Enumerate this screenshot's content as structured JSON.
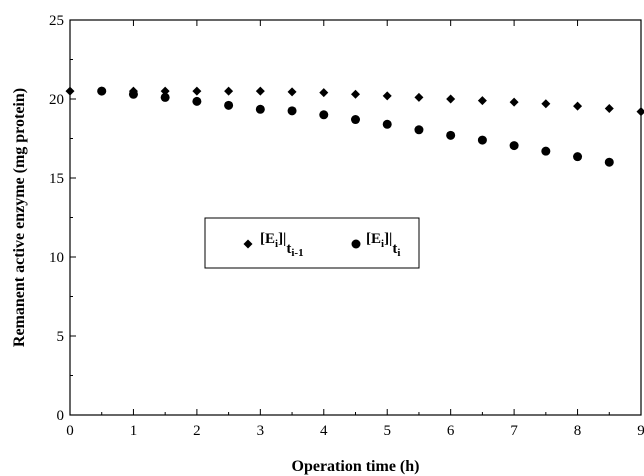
{
  "chart_data": {
    "type": "scatter",
    "title": "",
    "xlabel": "Operation time (h)",
    "ylabel": "Remanent active enzyme (mg protein)",
    "xlim": [
      0,
      9
    ],
    "ylim": [
      0,
      25
    ],
    "xticks": [
      0,
      1,
      2,
      3,
      4,
      5,
      6,
      7,
      8,
      9
    ],
    "yticks": [
      0,
      5,
      10,
      15,
      20,
      25
    ],
    "grid": false,
    "legend_position": "center-left",
    "series": [
      {
        "name": "[Ei]|ti-1",
        "legend": {
          "main": "[E",
          "sub1": "i",
          "mid": "]|",
          "sub2": "t",
          "sub3": "i-1"
        },
        "marker": "diamond",
        "color": "#000000",
        "x": [
          0,
          0.5,
          1,
          1.5,
          2,
          2.5,
          3,
          3.5,
          4,
          4.5,
          5,
          5.5,
          6,
          6.5,
          7,
          7.5,
          8,
          8.5,
          9
        ],
        "y": [
          20.5,
          20.5,
          20.5,
          20.5,
          20.5,
          20.5,
          20.5,
          20.45,
          20.4,
          20.3,
          20.2,
          20.1,
          20.0,
          19.9,
          19.8,
          19.7,
          19.55,
          19.4,
          19.2
        ]
      },
      {
        "name": "[Ei]|ti",
        "legend": {
          "main": "[E",
          "sub1": "i",
          "mid": "]|",
          "sub2": "t",
          "sub3": "i"
        },
        "marker": "circle",
        "color": "#000000",
        "x": [
          0.5,
          1,
          1.5,
          2,
          2.5,
          3,
          3.5,
          4,
          4.5,
          5,
          5.5,
          6,
          6.5,
          7,
          7.5,
          8,
          8.5
        ],
        "y": [
          20.5,
          20.3,
          20.1,
          19.85,
          19.6,
          19.35,
          19.25,
          19.0,
          18.7,
          18.4,
          18.05,
          17.7,
          17.4,
          17.05,
          16.7,
          16.35,
          16.0
        ]
      }
    ]
  }
}
